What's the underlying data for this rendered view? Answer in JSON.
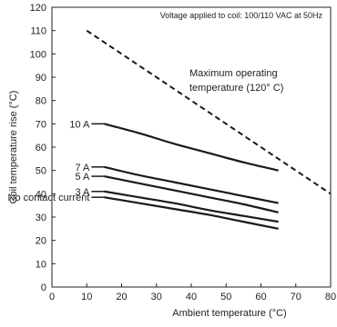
{
  "chart_data": {
    "type": "line",
    "note": "Voltage applied to coil: 100/110 VAC at 50Hz",
    "xlabel": "Ambient temperature (°C)",
    "ylabel": "Coil temperature rise (°C)",
    "xlim": [
      0,
      80
    ],
    "ylim": [
      0,
      120
    ],
    "x_ticks": [
      "0",
      "10",
      "20",
      "30",
      "40",
      "50",
      "60",
      "70",
      "80"
    ],
    "y_ticks": [
      "0",
      "10",
      "20",
      "30",
      "40",
      "50",
      "60",
      "70",
      "80",
      "90",
      "100",
      "110",
      "120"
    ],
    "grid": false,
    "series": [
      {
        "name": "10 A",
        "label_text": "10 A",
        "style": "solid",
        "x": [
          15,
          25,
          35,
          45,
          55,
          65
        ],
        "y": [
          70,
          66,
          61.5,
          57.5,
          53.5,
          50
        ]
      },
      {
        "name": "7 A",
        "label_text": "7 A",
        "style": "solid",
        "x": [
          15,
          25,
          35,
          45,
          55,
          65
        ],
        "y": [
          51.5,
          48,
          45,
          42,
          39,
          36
        ]
      },
      {
        "name": "5 A",
        "label_text": "5 A",
        "style": "solid",
        "x": [
          15,
          25,
          35,
          45,
          55,
          65
        ],
        "y": [
          47.5,
          44.5,
          41.5,
          38.5,
          35.5,
          32
        ]
      },
      {
        "name": "3 A",
        "label_text": "3 A",
        "style": "solid",
        "x": [
          15,
          25,
          35,
          45,
          55,
          65
        ],
        "y": [
          41,
          38.5,
          36,
          33,
          30.5,
          28
        ]
      },
      {
        "name": "No contact current",
        "label_text": "No contact current",
        "style": "solid",
        "x": [
          15,
          25,
          35,
          45,
          55,
          65
        ],
        "y": [
          38.5,
          36,
          33.5,
          31,
          28,
          25
        ]
      },
      {
        "name": "Maximum operating temperature (120° C)",
        "style": "dashed",
        "x": [
          10,
          80
        ],
        "y": [
          110,
          40
        ]
      }
    ],
    "annotations": {
      "max_temp_line1": "Maximum operating",
      "max_temp_line2": "temperature (120° C)"
    }
  }
}
